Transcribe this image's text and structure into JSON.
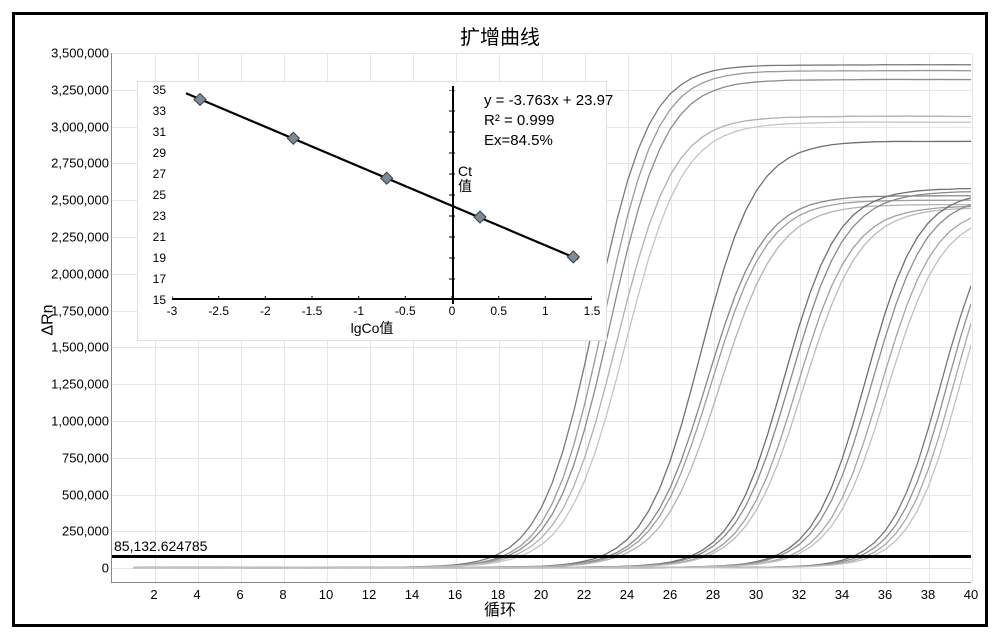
{
  "title": "扩增曲线",
  "axes": {
    "y_label": "ΔRn",
    "x_label": "循环",
    "x_min": 0,
    "x_max": 40,
    "y_min": -100000,
    "y_max": 3500000,
    "y_ticks": [
      0,
      250000,
      500000,
      750000,
      1000000,
      1250000,
      1500000,
      1750000,
      2000000,
      2250000,
      2500000,
      2750000,
      3000000,
      3250000,
      3500000
    ],
    "y_tick_labels": [
      "0",
      "250,000",
      "500,000",
      "750,000",
      "1,000,000",
      "1,250,000",
      "1,500,000",
      "1,750,000",
      "2,000,000",
      "2,250,000",
      "2,500,000",
      "2,750,000",
      "3,000,000",
      "3,250,000",
      "3,500,000"
    ],
    "x_ticks": [
      2,
      4,
      6,
      8,
      10,
      12,
      14,
      16,
      18,
      20,
      22,
      24,
      26,
      28,
      30,
      32,
      34,
      36,
      38,
      40
    ]
  },
  "threshold": {
    "value": 85132.624785,
    "label": "85,132.624785"
  },
  "plot": {
    "bg_color": "#ffffff",
    "grid_color": "#e6e6e6",
    "axis_color": "#888888",
    "curve_width": 1.3,
    "markers_color": "#7b8a99"
  },
  "curves": [
    {
      "color": "#7a7a7a",
      "midpoint": 22.5,
      "steep": 0.8,
      "plateau": 3420000,
      "noise": 0
    },
    {
      "color": "#9a9a9a",
      "midpoint": 22.9,
      "steep": 0.8,
      "plateau": 3380000,
      "noise": 1
    },
    {
      "color": "#8c8c8c",
      "midpoint": 23.2,
      "steep": 0.78,
      "plateau": 3320000,
      "noise": 2
    },
    {
      "color": "#b0b0b0",
      "midpoint": 23.5,
      "steep": 0.76,
      "plateau": 3070000,
      "noise": 3
    },
    {
      "color": "#c5c5c5",
      "midpoint": 23.9,
      "steep": 0.75,
      "plateau": 3030000,
      "noise": 4
    },
    {
      "color": "#707070",
      "midpoint": 27.4,
      "steep": 0.78,
      "plateau": 2900000,
      "noise": 5
    },
    {
      "color": "#888888",
      "midpoint": 27.7,
      "steep": 0.76,
      "plateau": 2530000,
      "noise": 6
    },
    {
      "color": "#9e9e9e",
      "midpoint": 27.9,
      "steep": 0.76,
      "plateau": 2500000,
      "noise": 7
    },
    {
      "color": "#b4b4b4",
      "midpoint": 28.3,
      "steep": 0.74,
      "plateau": 2470000,
      "noise": 8
    },
    {
      "color": "#6e6e6e",
      "midpoint": 31.3,
      "steep": 0.8,
      "plateau": 2580000,
      "noise": 9
    },
    {
      "color": "#888888",
      "midpoint": 31.6,
      "steep": 0.78,
      "plateau": 2560000,
      "noise": 10
    },
    {
      "color": "#a0a0a0",
      "midpoint": 31.9,
      "steep": 0.78,
      "plateau": 2460000,
      "noise": 11
    },
    {
      "color": "#bcbcbc",
      "midpoint": 32.2,
      "steep": 0.76,
      "plateau": 2450000,
      "noise": 12
    },
    {
      "color": "#707070",
      "midpoint": 35.1,
      "steep": 0.82,
      "plateau": 2560000,
      "noise": 13
    },
    {
      "color": "#8c8c8c",
      "midpoint": 35.4,
      "steep": 0.8,
      "plateau": 2530000,
      "noise": 14
    },
    {
      "color": "#a6a6a6",
      "midpoint": 35.8,
      "steep": 0.8,
      "plateau": 2460000,
      "noise": 15
    },
    {
      "color": "#c0c0c0",
      "midpoint": 36.1,
      "steep": 0.78,
      "plateau": 2420000,
      "noise": 16
    },
    {
      "color": "#787878",
      "midpoint": 38.6,
      "steep": 0.85,
      "plateau": 2500000,
      "noise": 17
    },
    {
      "color": "#909090",
      "midpoint": 38.9,
      "steep": 0.85,
      "plateau": 2500000,
      "noise": 18
    },
    {
      "color": "#a8a8a8",
      "midpoint": 39.2,
      "steep": 0.85,
      "plateau": 2500000,
      "noise": 19
    },
    {
      "color": "#c2c2c2",
      "midpoint": 39.5,
      "steep": 0.85,
      "plateau": 2500000,
      "noise": 20
    }
  ],
  "inset": {
    "x_label": "lgCo值",
    "y_label": "Ct\n值",
    "x_min": -3,
    "x_max": 1.5,
    "y_min": 15,
    "y_max": 35,
    "y_ticks": [
      15,
      17,
      19,
      21,
      23,
      25,
      27,
      29,
      31,
      33,
      35
    ],
    "x_ticks": [
      -3,
      -2.5,
      -2,
      -1.5,
      -1,
      -0.5,
      0,
      0.5,
      1,
      1.5
    ],
    "points": [
      {
        "x": -2.7,
        "y": 34.1
      },
      {
        "x": -1.7,
        "y": 30.4
      },
      {
        "x": -0.7,
        "y": 26.6
      },
      {
        "x": 0.3,
        "y": 22.9
      },
      {
        "x": 1.3,
        "y": 19.1
      }
    ],
    "line": {
      "slope": -3.763,
      "intercept": 23.97
    },
    "stats": {
      "eq": "y = -3.763x + 23.97",
      "r2": "R² = 0.999",
      "ex": "Ex=84.5%"
    },
    "line_color": "#000000",
    "marker_fill": "#7b8a99",
    "marker_stroke": "#3a3a3a",
    "marker_size": 6,
    "font_size": 12
  }
}
